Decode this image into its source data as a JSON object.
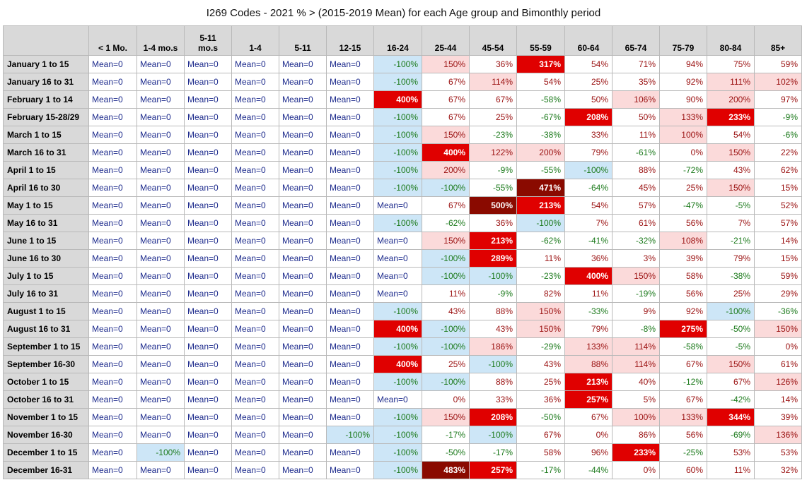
{
  "title": "I269 Codes - 2021 % > (2015-2019 Mean) for each Age group and Bimonthly period",
  "chart_data": {
    "type": "table",
    "title": "I269 Codes - 2021 % > (2015-2019 Mean) for each Age group and Bimonthly period",
    "columns": [
      "< 1 Mo.",
      "1-4 mo.s",
      "5-11 mo.s",
      "1-4",
      "5-11",
      "12-15",
      "16-24",
      "25-44",
      "45-54",
      "55-59",
      "60-64",
      "65-74",
      "75-79",
      "80-84",
      "85+"
    ],
    "rows": [
      {
        "label": "January 1 to 15",
        "values": [
          "Mean=0",
          "Mean=0",
          "Mean=0",
          "Mean=0",
          "Mean=0",
          "Mean=0",
          "-100%",
          "150%",
          "36%",
          "317%",
          "54%",
          "71%",
          "94%",
          "75%",
          "59%"
        ]
      },
      {
        "label": "January 16 to 31",
        "values": [
          "Mean=0",
          "Mean=0",
          "Mean=0",
          "Mean=0",
          "Mean=0",
          "Mean=0",
          "-100%",
          "67%",
          "114%",
          "54%",
          "25%",
          "35%",
          "92%",
          "111%",
          "102%"
        ]
      },
      {
        "label": "February 1 to 14",
        "values": [
          "Mean=0",
          "Mean=0",
          "Mean=0",
          "Mean=0",
          "Mean=0",
          "Mean=0",
          "400%",
          "67%",
          "67%",
          "-58%",
          "50%",
          "106%",
          "90%",
          "200%",
          "97%"
        ]
      },
      {
        "label": "February 15-28/29",
        "values": [
          "Mean=0",
          "Mean=0",
          "Mean=0",
          "Mean=0",
          "Mean=0",
          "Mean=0",
          "-100%",
          "67%",
          "25%",
          "-67%",
          "208%",
          "50%",
          "133%",
          "233%",
          "-9%"
        ]
      },
      {
        "label": "March 1 to 15",
        "values": [
          "Mean=0",
          "Mean=0",
          "Mean=0",
          "Mean=0",
          "Mean=0",
          "Mean=0",
          "-100%",
          "150%",
          "-23%",
          "-38%",
          "33%",
          "11%",
          "100%",
          "54%",
          "-6%"
        ]
      },
      {
        "label": "March 16 to 31",
        "values": [
          "Mean=0",
          "Mean=0",
          "Mean=0",
          "Mean=0",
          "Mean=0",
          "Mean=0",
          "-100%",
          "400%",
          "122%",
          "200%",
          "79%",
          "-61%",
          "0%",
          "150%",
          "22%"
        ]
      },
      {
        "label": "April 1 to 15",
        "values": [
          "Mean=0",
          "Mean=0",
          "Mean=0",
          "Mean=0",
          "Mean=0",
          "Mean=0",
          "-100%",
          "200%",
          "-9%",
          "-55%",
          "-100%",
          "88%",
          "-72%",
          "43%",
          "62%"
        ]
      },
      {
        "label": "April 16 to 30",
        "values": [
          "Mean=0",
          "Mean=0",
          "Mean=0",
          "Mean=0",
          "Mean=0",
          "Mean=0",
          "-100%",
          "-100%",
          "-55%",
          "471%",
          "-64%",
          "45%",
          "25%",
          "150%",
          "15%"
        ]
      },
      {
        "label": "May 1 to 15",
        "values": [
          "Mean=0",
          "Mean=0",
          "Mean=0",
          "Mean=0",
          "Mean=0",
          "Mean=0",
          "Mean=0",
          "67%",
          "500%",
          "213%",
          "54%",
          "57%",
          "-47%",
          "-5%",
          "52%"
        ]
      },
      {
        "label": "May 16 to 31",
        "values": [
          "Mean=0",
          "Mean=0",
          "Mean=0",
          "Mean=0",
          "Mean=0",
          "Mean=0",
          "-100%",
          "-62%",
          "36%",
          "-100%",
          "7%",
          "61%",
          "56%",
          "7%",
          "57%"
        ]
      },
      {
        "label": "June 1 to 15",
        "values": [
          "Mean=0",
          "Mean=0",
          "Mean=0",
          "Mean=0",
          "Mean=0",
          "Mean=0",
          "Mean=0",
          "150%",
          "213%",
          "-62%",
          "-41%",
          "-32%",
          "108%",
          "-21%",
          "14%"
        ]
      },
      {
        "label": "June 16 to 30",
        "values": [
          "Mean=0",
          "Mean=0",
          "Mean=0",
          "Mean=0",
          "Mean=0",
          "Mean=0",
          "Mean=0",
          "-100%",
          "289%",
          "11%",
          "36%",
          "3%",
          "39%",
          "79%",
          "15%"
        ]
      },
      {
        "label": "July 1 to 15",
        "values": [
          "Mean=0",
          "Mean=0",
          "Mean=0",
          "Mean=0",
          "Mean=0",
          "Mean=0",
          "Mean=0",
          "-100%",
          "-100%",
          "-23%",
          "400%",
          "150%",
          "58%",
          "-38%",
          "59%"
        ]
      },
      {
        "label": "July 16 to 31",
        "values": [
          "Mean=0",
          "Mean=0",
          "Mean=0",
          "Mean=0",
          "Mean=0",
          "Mean=0",
          "Mean=0",
          "11%",
          "-9%",
          "82%",
          "11%",
          "-19%",
          "56%",
          "25%",
          "29%"
        ]
      },
      {
        "label": "August 1 to 15",
        "values": [
          "Mean=0",
          "Mean=0",
          "Mean=0",
          "Mean=0",
          "Mean=0",
          "Mean=0",
          "-100%",
          "43%",
          "88%",
          "150%",
          "-33%",
          "9%",
          "92%",
          "-100%",
          "-36%"
        ]
      },
      {
        "label": "August 16 to 31",
        "values": [
          "Mean=0",
          "Mean=0",
          "Mean=0",
          "Mean=0",
          "Mean=0",
          "Mean=0",
          "400%",
          "-100%",
          "43%",
          "150%",
          "79%",
          "-8%",
          "275%",
          "-50%",
          "150%"
        ]
      },
      {
        "label": "September 1 to 15",
        "values": [
          "Mean=0",
          "Mean=0",
          "Mean=0",
          "Mean=0",
          "Mean=0",
          "Mean=0",
          "-100%",
          "-100%",
          "186%",
          "-29%",
          "133%",
          "114%",
          "-58%",
          "-5%",
          "0%"
        ]
      },
      {
        "label": "September 16-30",
        "values": [
          "Mean=0",
          "Mean=0",
          "Mean=0",
          "Mean=0",
          "Mean=0",
          "Mean=0",
          "400%",
          "25%",
          "-100%",
          "43%",
          "88%",
          "114%",
          "67%",
          "150%",
          "61%"
        ]
      },
      {
        "label": "October 1 to 15",
        "values": [
          "Mean=0",
          "Mean=0",
          "Mean=0",
          "Mean=0",
          "Mean=0",
          "Mean=0",
          "-100%",
          "-100%",
          "88%",
          "25%",
          "213%",
          "40%",
          "-12%",
          "67%",
          "126%"
        ]
      },
      {
        "label": "October 16 to 31",
        "values": [
          "Mean=0",
          "Mean=0",
          "Mean=0",
          "Mean=0",
          "Mean=0",
          "Mean=0",
          "Mean=0",
          "0%",
          "33%",
          "36%",
          "257%",
          "5%",
          "67%",
          "-42%",
          "14%"
        ]
      },
      {
        "label": "November 1 to 15",
        "values": [
          "Mean=0",
          "Mean=0",
          "Mean=0",
          "Mean=0",
          "Mean=0",
          "Mean=0",
          "-100%",
          "150%",
          "208%",
          "-50%",
          "67%",
          "100%",
          "133%",
          "344%",
          "39%"
        ]
      },
      {
        "label": "November 16-30",
        "values": [
          "Mean=0",
          "Mean=0",
          "Mean=0",
          "Mean=0",
          "Mean=0",
          "-100%",
          "-100%",
          "-17%",
          "-100%",
          "67%",
          "0%",
          "86%",
          "56%",
          "-69%",
          "136%"
        ]
      },
      {
        "label": "December 1 to 15",
        "values": [
          "Mean=0",
          "-100%",
          "Mean=0",
          "Mean=0",
          "Mean=0",
          "Mean=0",
          "-100%",
          "-50%",
          "-17%",
          "58%",
          "96%",
          "233%",
          "-25%",
          "53%",
          "53%"
        ]
      },
      {
        "label": "December 16-31",
        "values": [
          "Mean=0",
          "Mean=0",
          "Mean=0",
          "Mean=0",
          "Mean=0",
          "Mean=0",
          "-100%",
          "483%",
          "257%",
          "-17%",
          "-44%",
          "0%",
          "60%",
          "11%",
          "32%"
        ]
      }
    ]
  }
}
